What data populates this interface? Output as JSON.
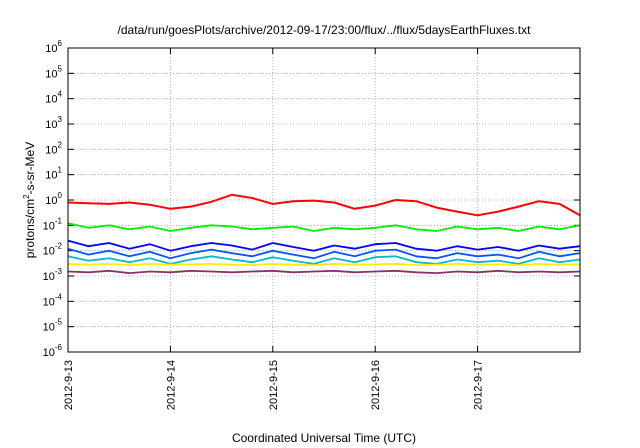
{
  "chart_data": {
    "type": "line",
    "title": "/data/run/goesPlots/archive/2012-09-17/23:00/flux/../flux/5daysEarthFluxes.txt",
    "xlabel": "Coordinated Universal Time (UTC)",
    "ylabel": {
      "base": "protons/cm",
      "sup": "2",
      "rest": "-s-sr-MeV"
    },
    "x_ticks": [
      "2012-9-13",
      "2012-9-14",
      "2012-9-15",
      "2012-9-16",
      "2012-9-17"
    ],
    "x_range_days": [
      0,
      5
    ],
    "y_scale": "log",
    "y_ticks": [
      {
        "base": "10",
        "exp": "-6"
      },
      {
        "base": "10",
        "exp": "-5"
      },
      {
        "base": "10",
        "exp": "-4"
      },
      {
        "base": "10",
        "exp": "-3"
      },
      {
        "base": "10",
        "exp": "-2"
      },
      {
        "base": "10",
        "exp": "-1"
      },
      {
        "base": "10",
        "exp": "0"
      },
      {
        "base": "10",
        "exp": "1"
      },
      {
        "base": "10",
        "exp": "2"
      },
      {
        "base": "10",
        "exp": "3"
      },
      {
        "base": "10",
        "exp": "4"
      },
      {
        "base": "10",
        "exp": "5"
      },
      {
        "base": "10",
        "exp": "6"
      }
    ],
    "ylim_log10": [
      -6,
      6
    ],
    "grid": true,
    "legend": "none",
    "series": [
      {
        "color": "#ff0000",
        "x": [
          0.0,
          0.2,
          0.4,
          0.6,
          0.8,
          1.0,
          1.2,
          1.4,
          1.6,
          1.8,
          2.0,
          2.2,
          2.4,
          2.6,
          2.8,
          3.0,
          3.2,
          3.4,
          3.6,
          3.8,
          4.0,
          4.2,
          4.4,
          4.6,
          4.8,
          5.0
        ],
        "values": [
          0.8,
          0.75,
          0.7,
          0.8,
          0.65,
          0.45,
          0.55,
          0.85,
          1.6,
          1.2,
          0.7,
          0.9,
          0.95,
          0.8,
          0.45,
          0.6,
          1.0,
          0.9,
          0.5,
          0.35,
          0.25,
          0.35,
          0.55,
          0.9,
          0.7,
          0.25
        ]
      },
      {
        "color": "#00ee00",
        "x": [
          0.0,
          0.2,
          0.4,
          0.6,
          0.8,
          1.0,
          1.2,
          1.4,
          1.6,
          1.8,
          2.0,
          2.2,
          2.4,
          2.6,
          2.8,
          3.0,
          3.2,
          3.4,
          3.6,
          3.8,
          4.0,
          4.2,
          4.4,
          4.6,
          4.8,
          5.0
        ],
        "values": [
          0.12,
          0.08,
          0.1,
          0.07,
          0.09,
          0.06,
          0.08,
          0.1,
          0.09,
          0.07,
          0.08,
          0.09,
          0.06,
          0.08,
          0.07,
          0.08,
          0.1,
          0.07,
          0.06,
          0.09,
          0.07,
          0.08,
          0.06,
          0.09,
          0.07,
          0.1
        ]
      },
      {
        "color": "#0000ff",
        "x": [
          0.0,
          0.2,
          0.4,
          0.6,
          0.8,
          1.0,
          1.2,
          1.4,
          1.6,
          1.8,
          2.0,
          2.2,
          2.4,
          2.6,
          2.8,
          3.0,
          3.2,
          3.4,
          3.6,
          3.8,
          4.0,
          4.2,
          4.4,
          4.6,
          4.8,
          5.0
        ],
        "values": [
          0.025,
          0.015,
          0.02,
          0.012,
          0.018,
          0.01,
          0.015,
          0.02,
          0.016,
          0.011,
          0.02,
          0.014,
          0.01,
          0.016,
          0.012,
          0.018,
          0.02,
          0.012,
          0.01,
          0.015,
          0.011,
          0.014,
          0.01,
          0.016,
          0.012,
          0.015
        ]
      },
      {
        "color": "#0055ff",
        "x": [
          0.0,
          0.2,
          0.4,
          0.6,
          0.8,
          1.0,
          1.2,
          1.4,
          1.6,
          1.8,
          2.0,
          2.2,
          2.4,
          2.6,
          2.8,
          3.0,
          3.2,
          3.4,
          3.6,
          3.8,
          4.0,
          4.2,
          4.4,
          4.6,
          4.8,
          5.0
        ],
        "values": [
          0.012,
          0.007,
          0.01,
          0.006,
          0.009,
          0.005,
          0.008,
          0.011,
          0.008,
          0.006,
          0.01,
          0.007,
          0.005,
          0.009,
          0.006,
          0.01,
          0.011,
          0.006,
          0.005,
          0.008,
          0.006,
          0.007,
          0.005,
          0.009,
          0.006,
          0.008
        ]
      },
      {
        "color": "#00bbcc",
        "x": [
          0.0,
          0.2,
          0.4,
          0.6,
          0.8,
          1.0,
          1.2,
          1.4,
          1.6,
          1.8,
          2.0,
          2.2,
          2.4,
          2.6,
          2.8,
          3.0,
          3.2,
          3.4,
          3.6,
          3.8,
          4.0,
          4.2,
          4.4,
          4.6,
          4.8,
          5.0
        ],
        "values": [
          0.006,
          0.004,
          0.005,
          0.0035,
          0.005,
          0.003,
          0.0045,
          0.006,
          0.0045,
          0.0035,
          0.0055,
          0.004,
          0.003,
          0.005,
          0.0035,
          0.0055,
          0.006,
          0.0035,
          0.003,
          0.0045,
          0.0035,
          0.004,
          0.003,
          0.005,
          0.0035,
          0.0045
        ]
      },
      {
        "color": "#ffee00",
        "x": [
          0.0,
          0.2,
          0.4,
          0.6,
          0.8,
          1.0,
          1.2,
          1.4,
          1.6,
          1.8,
          2.0,
          2.2,
          2.4,
          2.6,
          2.8,
          3.0,
          3.2,
          3.4,
          3.6,
          3.8,
          4.0,
          4.2,
          4.4,
          4.6,
          4.8,
          5.0
        ],
        "values": [
          0.003,
          0.0028,
          0.003,
          0.0027,
          0.003,
          0.0028,
          0.0029,
          0.003,
          0.0028,
          0.0027,
          0.003,
          0.0028,
          0.0027,
          0.003,
          0.0028,
          0.0029,
          0.003,
          0.0027,
          0.0028,
          0.003,
          0.0028,
          0.0029,
          0.0027,
          0.003,
          0.0028,
          0.0029
        ]
      },
      {
        "color": "#883366",
        "x": [
          0.0,
          0.2,
          0.4,
          0.6,
          0.8,
          1.0,
          1.2,
          1.4,
          1.6,
          1.8,
          2.0,
          2.2,
          2.4,
          2.6,
          2.8,
          3.0,
          3.2,
          3.4,
          3.6,
          3.8,
          4.0,
          4.2,
          4.4,
          4.6,
          4.8,
          5.0
        ],
        "values": [
          0.0015,
          0.0014,
          0.0016,
          0.0013,
          0.0015,
          0.0014,
          0.0016,
          0.0015,
          0.0014,
          0.0015,
          0.0016,
          0.0014,
          0.0015,
          0.0016,
          0.0014,
          0.0015,
          0.0016,
          0.0014,
          0.0013,
          0.0015,
          0.0014,
          0.0016,
          0.0014,
          0.0015,
          0.0014,
          0.0015
        ]
      }
    ]
  }
}
